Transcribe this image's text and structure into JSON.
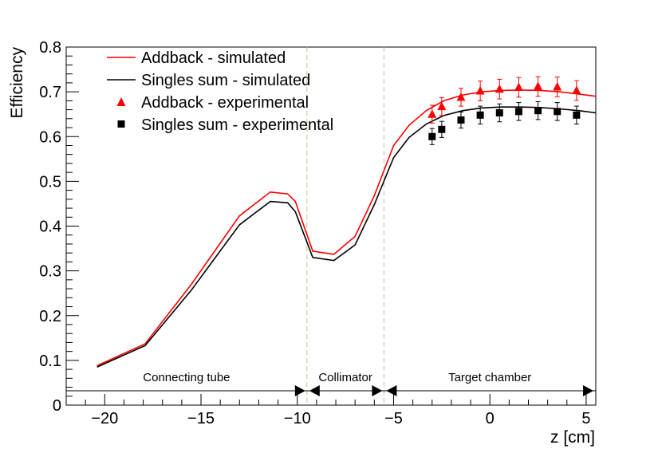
{
  "chart_data": {
    "type": "line",
    "xlabel": "z [cm]",
    "ylabel": "Efficiency",
    "xlim": [
      -22,
      5.5
    ],
    "ylim": [
      0,
      0.8
    ],
    "x_ticks": [
      -20,
      -15,
      -10,
      -5,
      0,
      5
    ],
    "x_tick_labels": [
      "−20",
      "−15",
      "−10",
      "−5",
      "0",
      "5"
    ],
    "y_ticks": [
      0,
      0.1,
      0.2,
      0.3,
      0.4,
      0.5,
      0.6,
      0.7,
      0.8
    ],
    "y_tick_labels": [
      "0",
      "0.1",
      "0.2",
      "0.3",
      "0.4",
      "0.5",
      "0.6",
      "0.7",
      "0.8"
    ],
    "colors": {
      "addback": "#ff0000",
      "singles": "#000000",
      "divider": "#c8b89a"
    },
    "series": [
      {
        "name": "Addback - simulated",
        "kind": "line",
        "color": "#ff0000",
        "x": [
          -20.4,
          -17.9,
          -15.5,
          -13.0,
          -11.4,
          -10.5,
          -10.1,
          -9.2,
          -8.1,
          -7.0,
          -6.0,
          -5.0,
          -4.2,
          -3.3,
          -2.4,
          -1.4,
          -0.4,
          0.6,
          1.6,
          2.6,
          3.6,
          4.6,
          5.5
        ],
        "y": [
          0.088,
          0.137,
          0.27,
          0.423,
          0.476,
          0.472,
          0.455,
          0.344,
          0.337,
          0.377,
          0.468,
          0.58,
          0.625,
          0.658,
          0.68,
          0.693,
          0.7,
          0.703,
          0.704,
          0.703,
          0.7,
          0.695,
          0.69
        ]
      },
      {
        "name": "Singles sum - simulated",
        "kind": "line",
        "color": "#000000",
        "x": [
          -20.4,
          -17.9,
          -15.5,
          -13.0,
          -11.4,
          -10.5,
          -10.1,
          -9.2,
          -8.1,
          -7.0,
          -6.0,
          -5.0,
          -4.2,
          -3.3,
          -2.4,
          -1.4,
          -0.4,
          0.6,
          1.6,
          2.6,
          3.6,
          4.6,
          5.5
        ],
        "y": [
          0.085,
          0.133,
          0.257,
          0.403,
          0.455,
          0.452,
          0.432,
          0.33,
          0.323,
          0.358,
          0.448,
          0.553,
          0.598,
          0.628,
          0.647,
          0.658,
          0.664,
          0.666,
          0.666,
          0.665,
          0.662,
          0.658,
          0.653
        ]
      },
      {
        "name": "Addback - experimental",
        "kind": "marker",
        "marker": "triangle",
        "color": "#ff0000",
        "x": [
          -3.0,
          -2.5,
          -1.5,
          -0.5,
          0.5,
          1.5,
          2.5,
          3.5,
          4.5
        ],
        "y": [
          0.65,
          0.667,
          0.688,
          0.702,
          0.706,
          0.71,
          0.712,
          0.711,
          0.703
        ],
        "err": [
          0.02,
          0.02,
          0.02,
          0.022,
          0.022,
          0.022,
          0.022,
          0.022,
          0.022
        ]
      },
      {
        "name": "Singles sum - experimental",
        "kind": "marker",
        "marker": "square",
        "color": "#000000",
        "x": [
          -3.0,
          -2.5,
          -1.5,
          -0.5,
          0.5,
          1.5,
          2.5,
          3.5,
          4.5
        ],
        "y": [
          0.6,
          0.616,
          0.637,
          0.648,
          0.653,
          0.656,
          0.658,
          0.656,
          0.648
        ],
        "err": [
          0.018,
          0.018,
          0.018,
          0.02,
          0.02,
          0.02,
          0.02,
          0.02,
          0.02
        ]
      }
    ],
    "dividers_x": [
      -9.5,
      -5.5
    ],
    "regions": [
      {
        "label": "Connecting tube",
        "x_start": -22,
        "x_end": -9.5
      },
      {
        "label": "Collimator",
        "x_start": -9.5,
        "x_end": -5.5
      },
      {
        "label": "Target chamber",
        "x_start": -5.5,
        "x_end": 5.5
      }
    ],
    "region_arrow_y": 0.032,
    "legend_position": "top-left"
  }
}
